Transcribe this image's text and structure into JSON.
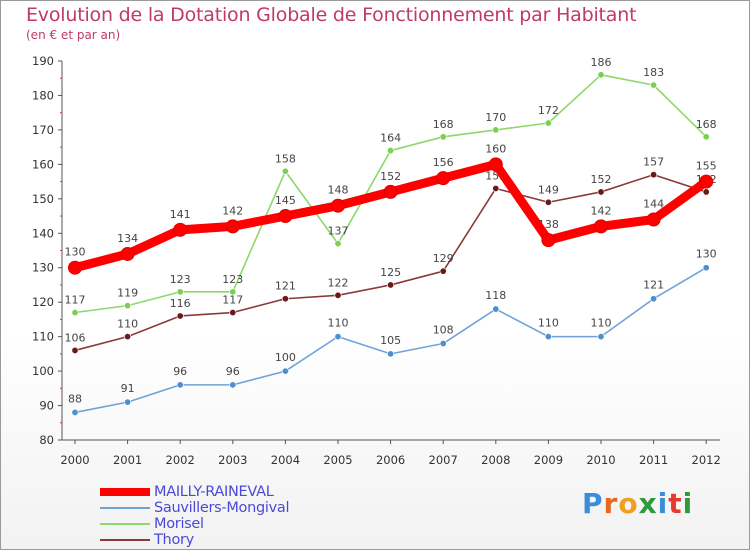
{
  "title": "Evolution de la Dotation Globale de Fonctionnement par Habitant",
  "subtitle": "(en € et par an)",
  "logo": {
    "text": "Proxiti",
    "letters": [
      "P",
      "r",
      "o",
      "x",
      "i",
      "t",
      "i"
    ],
    "colors": [
      "#3a8ed8",
      "#e8661f",
      "#f0a020",
      "#2b9b3c",
      "#3a8ed8",
      "#e83a2a",
      "#2b9b3c"
    ]
  },
  "chart_data": {
    "type": "line",
    "title": "Evolution de la Dotation Globale de Fonctionnement par Habitant",
    "xlabel": "",
    "ylabel": "(en € et par an)",
    "x": [
      "2000",
      "2001",
      "2002",
      "2003",
      "2004",
      "2005",
      "2006",
      "2007",
      "2008",
      "2009",
      "2010",
      "2011",
      "2012"
    ],
    "ylim": [
      80,
      190
    ],
    "yticks": [
      80,
      90,
      100,
      110,
      120,
      130,
      140,
      150,
      160,
      170,
      180,
      190
    ],
    "grid": false,
    "legend_position": "bottom-left",
    "series": [
      {
        "name": "MAILLY-RAINEVAL",
        "color": "#ff0000",
        "marker": "#ff0000",
        "thick": true,
        "values": [
          130,
          134,
          141,
          142,
          145,
          148,
          152,
          156,
          160,
          138,
          142,
          144,
          155
        ]
      },
      {
        "name": "Sauvillers-Mongival",
        "color": "#6fa3d8",
        "marker": "#4f8fd0",
        "thick": false,
        "values": [
          88,
          91,
          96,
          96,
          100,
          110,
          105,
          108,
          118,
          110,
          110,
          121,
          130
        ]
      },
      {
        "name": "Morisel",
        "color": "#8ed86a",
        "marker": "#7ad050",
        "thick": false,
        "values": [
          117,
          119,
          123,
          123,
          158,
          137,
          164,
          168,
          170,
          172,
          186,
          183,
          168
        ]
      },
      {
        "name": "Thory",
        "color": "#8b3a3a",
        "marker": "#6b1a1a",
        "thick": false,
        "values": [
          106,
          110,
          116,
          117,
          121,
          122,
          125,
          129,
          153,
          149,
          152,
          157,
          152
        ]
      }
    ]
  }
}
